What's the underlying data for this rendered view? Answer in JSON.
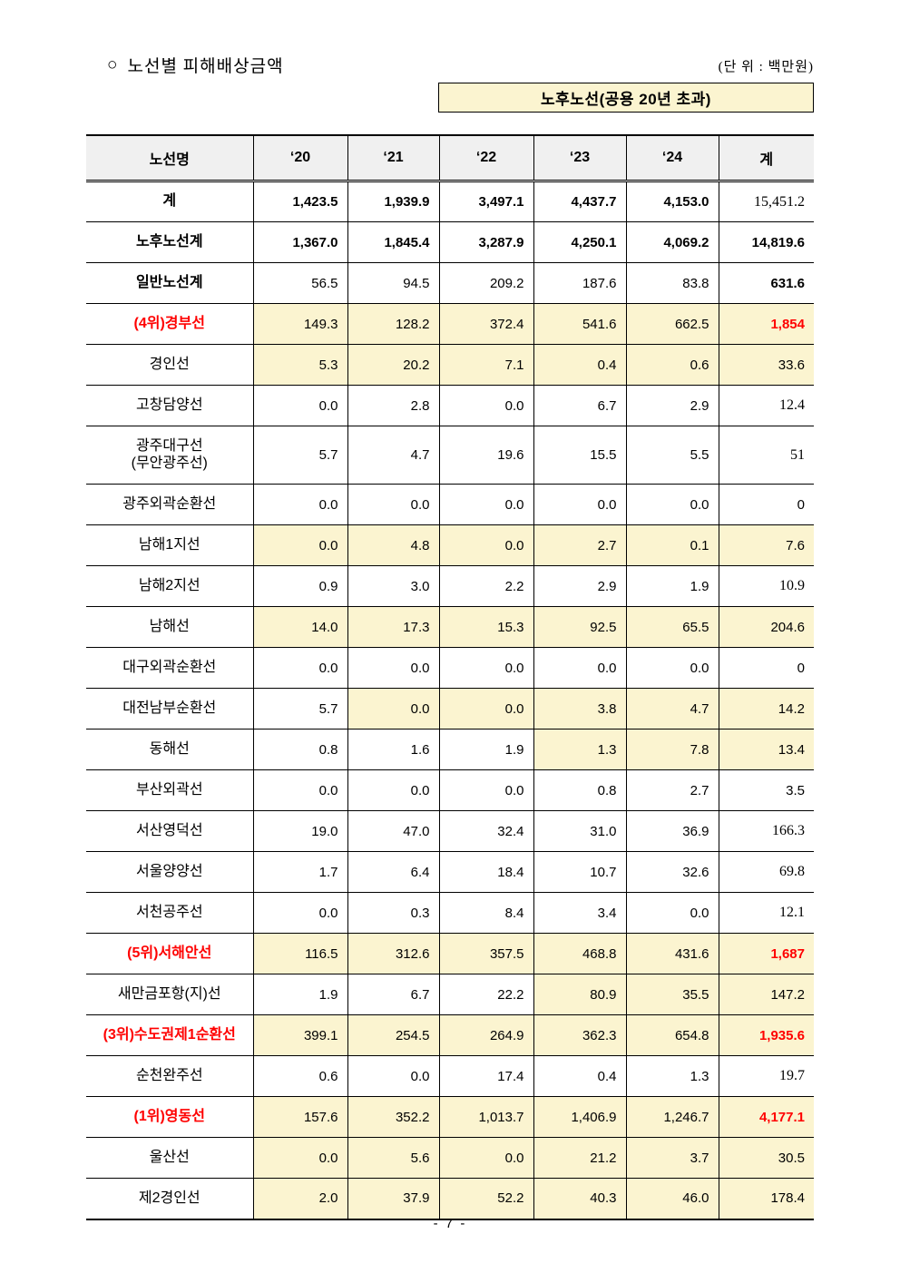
{
  "page": {
    "bullet": "○",
    "title": "노선별 피해배상금액",
    "unit_label": "(단 위 : 백만원)",
    "banner_label": "노후노선(공용 20년 초과)",
    "page_number": "- 7 -"
  },
  "colors": {
    "highlight_yellow": "#FBF4D0",
    "header_gray": "#F0F0F0",
    "accent_red": "#FF0000"
  },
  "table": {
    "headers": [
      "노선명",
      "‘20",
      "‘21",
      "‘22",
      "‘23",
      "‘24",
      "계"
    ],
    "rows": [
      {
        "label": "계",
        "label_bold": true,
        "cells": [
          {
            "v": "1,423.5",
            "bold": true
          },
          {
            "v": "1,939.9",
            "bold": true
          },
          {
            "v": "3,497.1",
            "bold": true
          },
          {
            "v": "4,437.7",
            "bold": true
          },
          {
            "v": "4,153.0",
            "bold": true
          },
          {
            "v": "15,451.2",
            "serif": true
          }
        ]
      },
      {
        "label": "노후노선계",
        "label_bold": true,
        "cells": [
          {
            "v": "1,367.0",
            "bold": true
          },
          {
            "v": "1,845.4",
            "bold": true
          },
          {
            "v": "3,287.9",
            "bold": true
          },
          {
            "v": "4,250.1",
            "bold": true
          },
          {
            "v": "4,069.2",
            "bold": true
          },
          {
            "v": "14,819.6",
            "bold": true
          }
        ]
      },
      {
        "label": "일반노선계",
        "label_bold": true,
        "cells": [
          {
            "v": "56.5"
          },
          {
            "v": "94.5"
          },
          {
            "v": "209.2"
          },
          {
            "v": "187.6"
          },
          {
            "v": "83.8"
          },
          {
            "v": "631.6",
            "bold": true
          }
        ]
      },
      {
        "label": "(4위)경부선",
        "label_bold": true,
        "label_red": true,
        "cells": [
          {
            "v": "149.3",
            "hl": true
          },
          {
            "v": "128.2",
            "hl": true
          },
          {
            "v": "372.4",
            "hl": true
          },
          {
            "v": "541.6",
            "hl": true
          },
          {
            "v": "662.5",
            "hl": true
          },
          {
            "v": "1,854",
            "hl": true,
            "bold": true,
            "red": true
          }
        ]
      },
      {
        "label": "경인선",
        "cells": [
          {
            "v": "5.3",
            "hl": true
          },
          {
            "v": "20.2",
            "hl": true
          },
          {
            "v": "7.1",
            "hl": true
          },
          {
            "v": "0.4",
            "hl": true
          },
          {
            "v": "0.6",
            "hl": true
          },
          {
            "v": "33.6",
            "hl": true
          }
        ]
      },
      {
        "label": "고창담양선",
        "cells": [
          {
            "v": "0.0"
          },
          {
            "v": "2.8"
          },
          {
            "v": "0.0"
          },
          {
            "v": "6.7"
          },
          {
            "v": "2.9"
          },
          {
            "v": "12.4",
            "serif": true
          }
        ]
      },
      {
        "label": "광주대구선",
        "label2": "(무안광주선)",
        "tall": true,
        "cells": [
          {
            "v": "5.7"
          },
          {
            "v": "4.7"
          },
          {
            "v": "19.6"
          },
          {
            "v": "15.5"
          },
          {
            "v": "5.5"
          },
          {
            "v": "51",
            "serif": true
          }
        ]
      },
      {
        "label": "광주외곽순환선",
        "cells": [
          {
            "v": "0.0"
          },
          {
            "v": "0.0"
          },
          {
            "v": "0.0"
          },
          {
            "v": "0.0"
          },
          {
            "v": "0.0"
          },
          {
            "v": "0"
          }
        ]
      },
      {
        "label": "남해1지선",
        "cells": [
          {
            "v": "0.0",
            "hl": true
          },
          {
            "v": "4.8",
            "hl": true
          },
          {
            "v": "0.0",
            "hl": true
          },
          {
            "v": "2.7",
            "hl": true
          },
          {
            "v": "0.1",
            "hl": true
          },
          {
            "v": "7.6",
            "hl": true
          }
        ]
      },
      {
        "label": "남해2지선",
        "cells": [
          {
            "v": "0.9"
          },
          {
            "v": "3.0"
          },
          {
            "v": "2.2"
          },
          {
            "v": "2.9"
          },
          {
            "v": "1.9"
          },
          {
            "v": "10.9",
            "serif": true
          }
        ]
      },
      {
        "label": "남해선",
        "cells": [
          {
            "v": "14.0",
            "hl": true
          },
          {
            "v": "17.3",
            "hl": true
          },
          {
            "v": "15.3",
            "hl": true
          },
          {
            "v": "92.5",
            "hl": true
          },
          {
            "v": "65.5",
            "hl": true
          },
          {
            "v": "204.6",
            "hl": true
          }
        ]
      },
      {
        "label": "대구외곽순환선",
        "cells": [
          {
            "v": "0.0"
          },
          {
            "v": "0.0"
          },
          {
            "v": "0.0"
          },
          {
            "v": "0.0"
          },
          {
            "v": "0.0"
          },
          {
            "v": "0"
          }
        ]
      },
      {
        "label": "대전남부순환선",
        "cells": [
          {
            "v": "5.7"
          },
          {
            "v": "0.0",
            "hl": true
          },
          {
            "v": "0.0",
            "hl": true
          },
          {
            "v": "3.8",
            "hl": true
          },
          {
            "v": "4.7",
            "hl": true
          },
          {
            "v": "14.2",
            "hl": true
          }
        ]
      },
      {
        "label": "동해선",
        "cells": [
          {
            "v": "0.8"
          },
          {
            "v": "1.6"
          },
          {
            "v": "1.9"
          },
          {
            "v": "1.3",
            "hl": true
          },
          {
            "v": "7.8",
            "hl": true
          },
          {
            "v": "13.4",
            "hl": true
          }
        ]
      },
      {
        "label": "부산외곽선",
        "cells": [
          {
            "v": "0.0"
          },
          {
            "v": "0.0"
          },
          {
            "v": "0.0"
          },
          {
            "v": "0.8"
          },
          {
            "v": "2.7"
          },
          {
            "v": "3.5"
          }
        ]
      },
      {
        "label": "서산영덕선",
        "cells": [
          {
            "v": "19.0"
          },
          {
            "v": "47.0"
          },
          {
            "v": "32.4"
          },
          {
            "v": "31.0"
          },
          {
            "v": "36.9"
          },
          {
            "v": "166.3",
            "serif": true
          }
        ]
      },
      {
        "label": "서울양양선",
        "cells": [
          {
            "v": "1.7"
          },
          {
            "v": "6.4"
          },
          {
            "v": "18.4"
          },
          {
            "v": "10.7"
          },
          {
            "v": "32.6"
          },
          {
            "v": "69.8",
            "serif": true
          }
        ]
      },
      {
        "label": "서천공주선",
        "cells": [
          {
            "v": "0.0"
          },
          {
            "v": "0.3"
          },
          {
            "v": "8.4"
          },
          {
            "v": "3.4"
          },
          {
            "v": "0.0"
          },
          {
            "v": "12.1",
            "serif": true
          }
        ]
      },
      {
        "label": "(5위)서해안선",
        "label_bold": true,
        "label_red": true,
        "cells": [
          {
            "v": "116.5",
            "hl": true
          },
          {
            "v": "312.6",
            "hl": true
          },
          {
            "v": "357.5",
            "hl": true
          },
          {
            "v": "468.8",
            "hl": true
          },
          {
            "v": "431.6",
            "hl": true
          },
          {
            "v": "1,687",
            "hl": true,
            "bold": true,
            "red": true
          }
        ]
      },
      {
        "label": "새만금포항(지)선",
        "cells": [
          {
            "v": "1.9"
          },
          {
            "v": "6.7"
          },
          {
            "v": "22.2"
          },
          {
            "v": "80.9",
            "hl": true
          },
          {
            "v": "35.5",
            "hl": true
          },
          {
            "v": "147.2",
            "hl": true
          }
        ]
      },
      {
        "label": "(3위)수도권제1순환선",
        "label_bold": true,
        "label_red": true,
        "cells": [
          {
            "v": "399.1",
            "hl": true
          },
          {
            "v": "254.5",
            "hl": true
          },
          {
            "v": "264.9",
            "hl": true
          },
          {
            "v": "362.3",
            "hl": true
          },
          {
            "v": "654.8",
            "hl": true
          },
          {
            "v": "1,935.6",
            "hl": true,
            "bold": true,
            "red": true
          }
        ]
      },
      {
        "label": "순천완주선",
        "cells": [
          {
            "v": "0.6"
          },
          {
            "v": "0.0"
          },
          {
            "v": "17.4"
          },
          {
            "v": "0.4"
          },
          {
            "v": "1.3"
          },
          {
            "v": "19.7",
            "serif": true
          }
        ]
      },
      {
        "label": "(1위)영동선",
        "label_bold": true,
        "label_red": true,
        "cells": [
          {
            "v": "157.6",
            "hl": true
          },
          {
            "v": "352.2",
            "hl": true
          },
          {
            "v": "1,013.7",
            "hl": true
          },
          {
            "v": "1,406.9",
            "hl": true
          },
          {
            "v": "1,246.7",
            "hl": true
          },
          {
            "v": "4,177.1",
            "hl": true,
            "bold": true,
            "red": true
          }
        ]
      },
      {
        "label": "울산선",
        "cells": [
          {
            "v": "0.0",
            "hl": true
          },
          {
            "v": "5.6",
            "hl": true
          },
          {
            "v": "0.0",
            "hl": true
          },
          {
            "v": "21.2",
            "hl": true
          },
          {
            "v": "3.7",
            "hl": true
          },
          {
            "v": "30.5",
            "hl": true
          }
        ]
      },
      {
        "label": "제2경인선",
        "cells": [
          {
            "v": "2.0",
            "hl": true
          },
          {
            "v": "37.9",
            "hl": true
          },
          {
            "v": "52.2",
            "hl": true
          },
          {
            "v": "40.3",
            "hl": true
          },
          {
            "v": "46.0",
            "hl": true
          },
          {
            "v": "178.4",
            "hl": true
          }
        ]
      }
    ]
  }
}
